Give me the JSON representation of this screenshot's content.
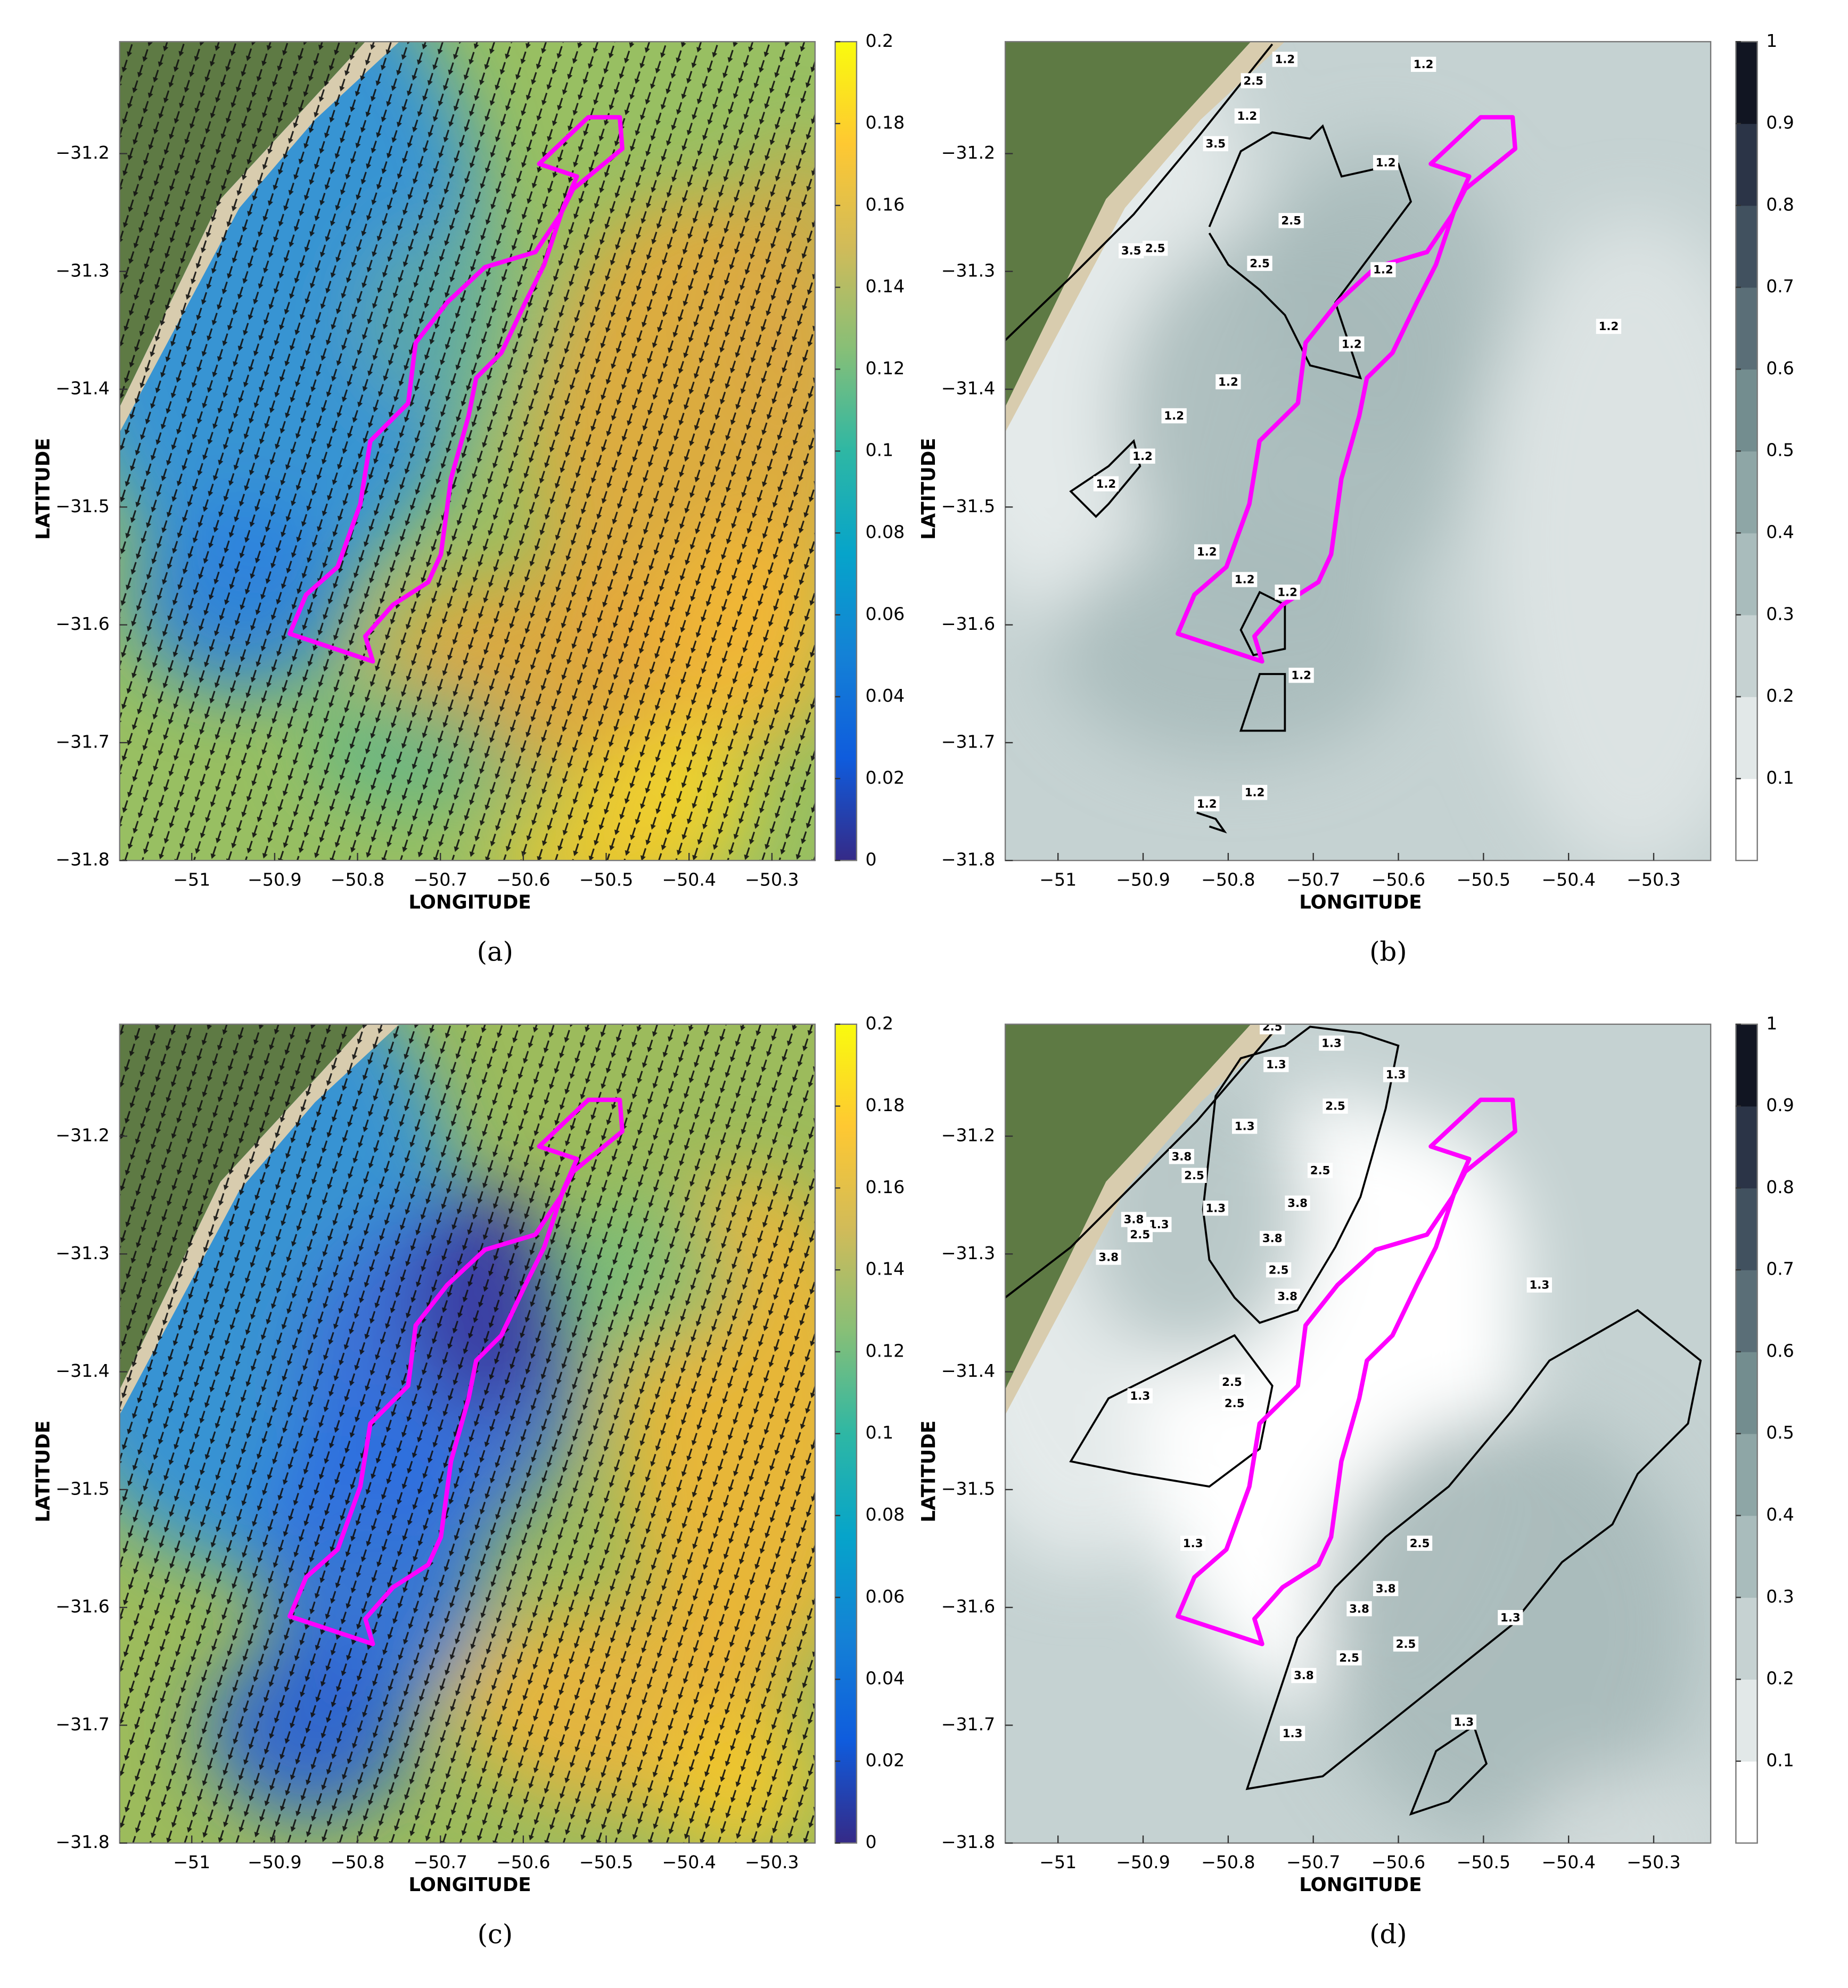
{
  "chart_data": [
    {
      "type": "quiver",
      "xlabel": "LONGITUDE",
      "ylabel": "LATITUDE",
      "caption": "(a)",
      "xlim": [
        -51.087,
        -50.248
      ],
      "ylim": [
        -31.8,
        -31.105
      ],
      "xticks": [
        {
          "value": -51,
          "label": "−51"
        },
        {
          "value": -50.9,
          "label": "−50.9"
        },
        {
          "value": -50.8,
          "label": "−50.8"
        },
        {
          "value": -50.7,
          "label": "−50.7"
        },
        {
          "value": -50.6,
          "label": "−50.6"
        },
        {
          "value": -50.5,
          "label": "−50.5"
        },
        {
          "value": -50.4,
          "label": "−50.4"
        },
        {
          "value": -50.3,
          "label": "−50.3"
        }
      ],
      "yticks": [
        {
          "value": -31.2,
          "label": "−31.2"
        },
        {
          "value": -31.3,
          "label": "−31.3"
        },
        {
          "value": -31.4,
          "label": "−31.4"
        },
        {
          "value": -31.5,
          "label": "−31.5"
        },
        {
          "value": -31.6,
          "label": "−31.6"
        },
        {
          "value": -31.7,
          "label": "−31.7"
        },
        {
          "value": -31.8,
          "label": "−31.8"
        }
      ],
      "colorbar": {
        "lim": [
          0,
          0.2
        ],
        "ticks": [
          0,
          0.02,
          0.04,
          0.06,
          0.08,
          0.1,
          0.12,
          0.14,
          0.16,
          0.18,
          0.2
        ],
        "colors": [
          "#352a87",
          "#0f5cdd",
          "#1481d6",
          "#06a4ca",
          "#2eb7a4",
          "#87bf77",
          "#d1bb59",
          "#fec832",
          "#f9fb0e"
        ]
      }
    },
    {
      "type": "contour",
      "xlabel": "LONGITUDE",
      "ylabel": "LATITUDE",
      "caption": "(b)",
      "xlim": [
        -51.062,
        -50.233
      ],
      "ylim": [
        -31.8,
        -31.105
      ],
      "xticks": [
        {
          "value": -51,
          "label": "−51"
        },
        {
          "value": -50.9,
          "label": "−50.9"
        },
        {
          "value": -50.8,
          "label": "−50.8"
        },
        {
          "value": -50.7,
          "label": "−50.7"
        },
        {
          "value": -50.6,
          "label": "−50.6"
        },
        {
          "value": -50.5,
          "label": "−50.5"
        },
        {
          "value": -50.4,
          "label": "−50.4"
        },
        {
          "value": -50.3,
          "label": "−50.3"
        }
      ],
      "yticks": [
        {
          "value": -31.2,
          "label": "−31.2"
        },
        {
          "value": -31.3,
          "label": "−31.3"
        },
        {
          "value": -31.4,
          "label": "−31.4"
        },
        {
          "value": -31.5,
          "label": "−31.5"
        },
        {
          "value": -31.6,
          "label": "−31.6"
        },
        {
          "value": -31.7,
          "label": "−31.7"
        },
        {
          "value": -31.8,
          "label": "−31.8"
        }
      ],
      "colorbar": {
        "lim": [
          0,
          1
        ],
        "ticks": [
          0.1,
          0.2,
          0.3,
          0.4,
          0.5,
          0.6,
          0.7,
          0.8,
          0.9,
          1
        ],
        "colors": [
          "#ffffff",
          "#e2e8e8",
          "#c6d2d2",
          "#a9bcbc",
          "#8ea6a6",
          "#738d8f",
          "#5a6e77",
          "#41515f",
          "#2b3447",
          "#111522"
        ]
      },
      "contour_labels": [
        1.2,
        1.2,
        2.5,
        1.2,
        3.5,
        1.2,
        2.5,
        2.5,
        3.5,
        2.5,
        1.2,
        1.2,
        1.2,
        1.2,
        1.2,
        1.2,
        1.2,
        1.2,
        1.2,
        1.2,
        1.2,
        1.2,
        1.2
      ]
    },
    {
      "type": "quiver",
      "xlabel": "LONGITUDE",
      "ylabel": "LATITUDE",
      "caption": "(c)",
      "xlim": [
        -51.087,
        -50.248
      ],
      "ylim": [
        -31.8,
        -31.105
      ],
      "xticks": [
        {
          "value": -51,
          "label": "−51"
        },
        {
          "value": -50.9,
          "label": "−50.9"
        },
        {
          "value": -50.8,
          "label": "−50.8"
        },
        {
          "value": -50.7,
          "label": "−50.7"
        },
        {
          "value": -50.6,
          "label": "−50.6"
        },
        {
          "value": -50.5,
          "label": "−50.5"
        },
        {
          "value": -50.4,
          "label": "−50.4"
        },
        {
          "value": -50.3,
          "label": "−50.3"
        }
      ],
      "yticks": [
        {
          "value": -31.2,
          "label": "−31.2"
        },
        {
          "value": -31.3,
          "label": "−31.3"
        },
        {
          "value": -31.4,
          "label": "−31.4"
        },
        {
          "value": -31.5,
          "label": "−31.5"
        },
        {
          "value": -31.6,
          "label": "−31.6"
        },
        {
          "value": -31.7,
          "label": "−31.7"
        },
        {
          "value": -31.8,
          "label": "−31.8"
        }
      ],
      "colorbar": {
        "lim": [
          0,
          0.2
        ],
        "ticks": [
          0,
          0.02,
          0.04,
          0.06,
          0.08,
          0.1,
          0.12,
          0.14,
          0.16,
          0.18,
          0.2
        ],
        "colors": [
          "#352a87",
          "#0f5cdd",
          "#1481d6",
          "#06a4ca",
          "#2eb7a4",
          "#87bf77",
          "#d1bb59",
          "#fec832",
          "#f9fb0e"
        ]
      }
    },
    {
      "type": "contour",
      "xlabel": "LONGITUDE",
      "ylabel": "LATITUDE",
      "caption": "(d)",
      "xlim": [
        -51.062,
        -50.233
      ],
      "ylim": [
        -31.8,
        -31.105
      ],
      "xticks": [
        {
          "value": -51,
          "label": "−51"
        },
        {
          "value": -50.9,
          "label": "−50.9"
        },
        {
          "value": -50.8,
          "label": "−50.8"
        },
        {
          "value": -50.7,
          "label": "−50.7"
        },
        {
          "value": -50.6,
          "label": "−50.6"
        },
        {
          "value": -50.5,
          "label": "−50.5"
        },
        {
          "value": -50.4,
          "label": "−50.4"
        },
        {
          "value": -50.3,
          "label": "−50.3"
        }
      ],
      "yticks": [
        {
          "value": -31.2,
          "label": "−31.2"
        },
        {
          "value": -31.3,
          "label": "−31.3"
        },
        {
          "value": -31.4,
          "label": "−31.4"
        },
        {
          "value": -31.5,
          "label": "−31.5"
        },
        {
          "value": -31.6,
          "label": "−31.6"
        },
        {
          "value": -31.7,
          "label": "−31.7"
        },
        {
          "value": -31.8,
          "label": "−31.8"
        }
      ],
      "colorbar": {
        "lim": [
          0,
          1
        ],
        "ticks": [
          0.1,
          0.2,
          0.3,
          0.4,
          0.5,
          0.6,
          0.7,
          0.8,
          0.9,
          1
        ],
        "colors": [
          "#ffffff",
          "#e2e8e8",
          "#c6d2d2",
          "#a9bcbc",
          "#8ea6a6",
          "#738d8f",
          "#5a6e77",
          "#41515f",
          "#2b3447",
          "#111522"
        ]
      },
      "contour_labels": [
        2.5,
        1.3,
        1.3,
        1.3,
        2.5,
        1.3,
        3.8,
        2.5,
        2.5,
        3.8,
        1.3,
        3.8,
        1.3,
        2.5,
        3.8,
        3.8,
        2.5,
        3.8,
        1.3,
        2.5,
        2.5,
        1.3,
        1.3,
        2.5,
        3.8,
        3.8,
        1.3,
        2.5,
        2.5,
        3.8,
        1.3,
        1.3
      ]
    }
  ]
}
